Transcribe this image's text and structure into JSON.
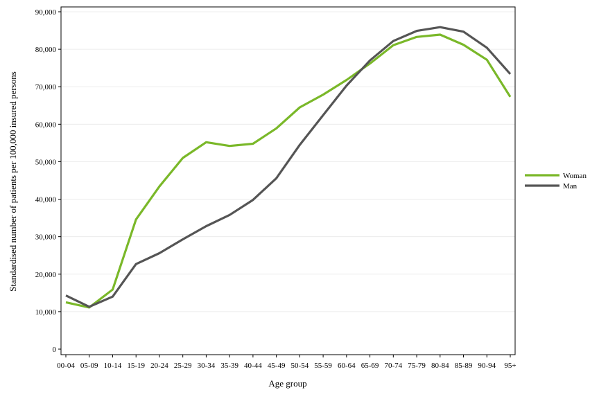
{
  "chart_data": {
    "type": "line",
    "title": "",
    "xlabel": "Age group",
    "ylabel": "Standardised number of patients per 100,000 insured persons",
    "ylim": [
      0,
      90000
    ],
    "yticks": [
      0,
      10000,
      20000,
      30000,
      40000,
      50000,
      60000,
      70000,
      80000,
      90000
    ],
    "ytick_labels": [
      "0",
      "10,000",
      "20,000",
      "30,000",
      "40,000",
      "50,000",
      "60,000",
      "70,000",
      "80,000",
      "90,000"
    ],
    "grid": "horizontal",
    "legend_position": "right",
    "categories": [
      "00-04",
      "05-09",
      "10-14",
      "15-19",
      "20-24",
      "25-29",
      "30-34",
      "35-39",
      "40-44",
      "45-49",
      "50-54",
      "55-59",
      "60-64",
      "65-69",
      "70-74",
      "75-79",
      "80-84",
      "85-89",
      "90-94",
      "95+"
    ],
    "series": [
      {
        "name": "Woman",
        "color": "#7ab829",
        "values": [
          12500,
          11100,
          15900,
          34600,
          43400,
          51000,
          55200,
          54200,
          54800,
          58900,
          64500,
          67900,
          71800,
          76200,
          81100,
          83300,
          83900,
          81200,
          77200,
          67300
        ]
      },
      {
        "name": "Man",
        "color": "#555555",
        "values": [
          14300,
          11300,
          14000,
          22700,
          25600,
          29300,
          32800,
          35800,
          39800,
          45600,
          54500,
          62400,
          70300,
          77000,
          82200,
          84900,
          85900,
          84700,
          80400,
          73400
        ]
      }
    ]
  }
}
